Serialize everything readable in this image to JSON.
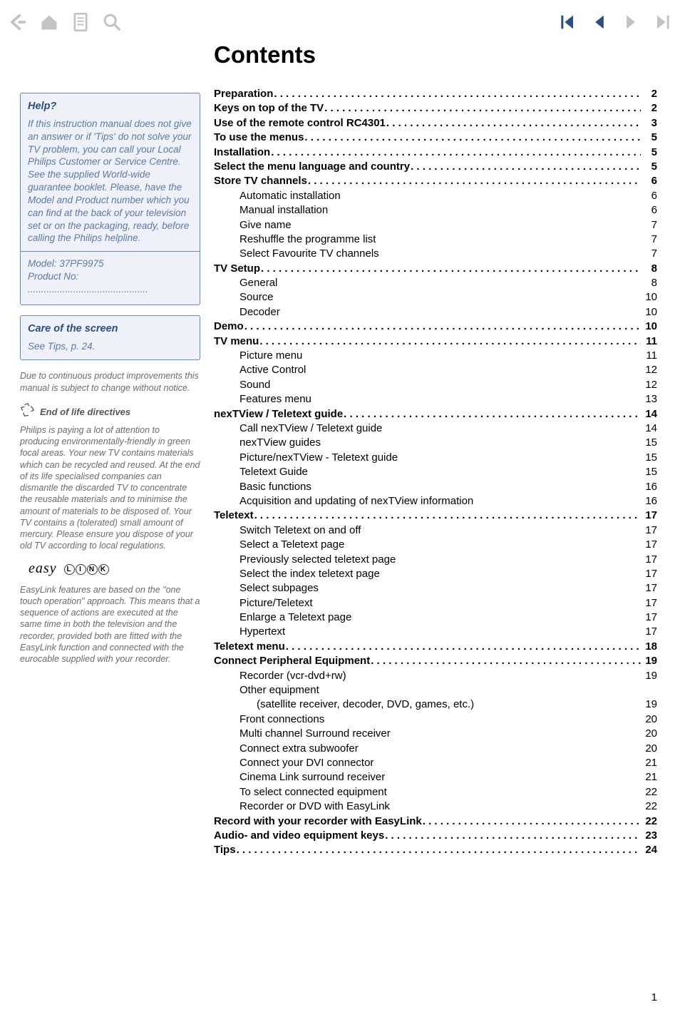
{
  "title": "Contents",
  "page_number": "1",
  "colors": {
    "box_border": "#6b8ab5",
    "box_bg": "#eef2f8",
    "side_title": "#2a4f85",
    "side_body": "#5b7aa6",
    "side_para": "#6b6b6b",
    "nav_inactive": "#c3c3c3",
    "nav_active_blue": "#2a4f85"
  },
  "nav": {
    "back": "back-icon",
    "home": "home-icon",
    "doc": "document-icon",
    "search": "search-icon",
    "first": "first-page-icon",
    "prev": "prev-page-icon",
    "next": "next-page-icon",
    "last": "last-page-icon"
  },
  "help": {
    "title": "Help?",
    "body": "If this instruction manual does not give an answer or if 'Tips' do not solve your TV problem, you can call your Local Philips Customer or Service Centre. See the supplied World-wide guarantee booklet.\nPlease, have the Model and Product number which you can find at the back of your television set or on the packaging, ready, before calling the Philips helpline.",
    "model_label": "Model: 37PF9975",
    "product_label": "Product No:  ............................................."
  },
  "care": {
    "title": "Care of the screen",
    "body": "See Tips, p. 24."
  },
  "notice": "Due to continuous product improvements this manual is subject to change without notice.",
  "eol": {
    "title": "End of life directives",
    "body": "Philips is paying a lot of attention to producing environmentally-friendly in green focal areas. Your new TV contains materials which can be recycled and reused. At the end of its life specialised companies can dismantle the discarded TV to concentrate the reusable materials and to minimise the amount of materials to be disposed of.\nYour TV contains a (tolerated) small amount of mercury. Please ensure you dispose of your old TV according to local regulations."
  },
  "easylink": {
    "logo_script": "easy",
    "letters": [
      "L",
      "I",
      "N",
      "K"
    ],
    "body": "EasyLink features are based on the \"one touch operation\" approach. This means that a sequence of actions are executed at the same time in both the television and the recorder, provided both are fitted with the EasyLink function and connected with the eurocable supplied with your recorder."
  },
  "toc": [
    {
      "label": "Preparation",
      "page": "2",
      "bold": true,
      "dots": true,
      "indent": 0
    },
    {
      "label": "Keys on top of the TV",
      "page": "2",
      "bold": true,
      "dots": true,
      "indent": 0
    },
    {
      "label": "Use of the remote control RC4301",
      "page": "3",
      "bold": true,
      "dots": true,
      "indent": 0
    },
    {
      "label": "To use the menus",
      "page": "5",
      "bold": true,
      "dots": true,
      "indent": 0
    },
    {
      "label": "Installation",
      "page": "5",
      "bold": true,
      "dots": true,
      "indent": 0
    },
    {
      "label": "Select the menu language and country",
      "page": "5",
      "bold": true,
      "dots": true,
      "indent": 0
    },
    {
      "label": "Store TV channels",
      "page": "6",
      "bold": true,
      "dots": true,
      "indent": 0
    },
    {
      "label": "Automatic installation",
      "page": "6",
      "bold": false,
      "dots": false,
      "indent": 1
    },
    {
      "label": "Manual installation",
      "page": "6",
      "bold": false,
      "dots": false,
      "indent": 1
    },
    {
      "label": "Give name",
      "page": "7",
      "bold": false,
      "dots": false,
      "indent": 1
    },
    {
      "label": "Reshuffle the programme list",
      "page": "7",
      "bold": false,
      "dots": false,
      "indent": 1
    },
    {
      "label": "Select Favourite TV channels",
      "page": "7",
      "bold": false,
      "dots": false,
      "indent": 1
    },
    {
      "label": "TV Setup",
      "page": "8",
      "bold": true,
      "dots": true,
      "indent": 0
    },
    {
      "label": "General",
      "page": "8",
      "bold": false,
      "dots": false,
      "indent": 1
    },
    {
      "label": "Source",
      "page": "10",
      "bold": false,
      "dots": false,
      "indent": 1
    },
    {
      "label": "Decoder",
      "page": "10",
      "bold": false,
      "dots": false,
      "indent": 1
    },
    {
      "label": "Demo",
      "page": "10",
      "bold": true,
      "dots": true,
      "indent": 0
    },
    {
      "label": "TV menu",
      "page": "11",
      "bold": true,
      "dots": true,
      "indent": 0
    },
    {
      "label": "Picture menu",
      "page": "11",
      "bold": false,
      "dots": false,
      "indent": 1
    },
    {
      "label": "Active Control",
      "page": "12",
      "bold": false,
      "dots": false,
      "indent": 1
    },
    {
      "label": "Sound",
      "page": "12",
      "bold": false,
      "dots": false,
      "indent": 1
    },
    {
      "label": "Features menu",
      "page": "13",
      "bold": false,
      "dots": false,
      "indent": 1
    },
    {
      "label": "nexTView / Teletext guide",
      "page": "14",
      "bold": true,
      "dots": true,
      "indent": 0
    },
    {
      "label": "Call nexTView / Teletext guide",
      "page": "14",
      "bold": false,
      "dots": false,
      "indent": 1
    },
    {
      "label": "nexTView guides",
      "page": "15",
      "bold": false,
      "dots": false,
      "indent": 1
    },
    {
      "label": "Picture/nexTView - Teletext guide",
      "page": "15",
      "bold": false,
      "dots": false,
      "indent": 1
    },
    {
      "label": "Teletext Guide",
      "page": "15",
      "bold": false,
      "dots": false,
      "indent": 1
    },
    {
      "label": "Basic functions",
      "page": "16",
      "bold": false,
      "dots": false,
      "indent": 1
    },
    {
      "label": "Acquisition and updating of nexTView information",
      "page": "16",
      "bold": false,
      "dots": false,
      "indent": 1
    },
    {
      "label": "Teletext",
      "page": "17",
      "bold": true,
      "dots": true,
      "indent": 0
    },
    {
      "label": "Switch Teletext on and off",
      "page": "17",
      "bold": false,
      "dots": false,
      "indent": 1
    },
    {
      "label": "Select a Teletext page",
      "page": "17",
      "bold": false,
      "dots": false,
      "indent": 1
    },
    {
      "label": "Previously selected teletext page",
      "page": "17",
      "bold": false,
      "dots": false,
      "indent": 1
    },
    {
      "label": "Select the index teletext page",
      "page": "17",
      "bold": false,
      "dots": false,
      "indent": 1
    },
    {
      "label": "Select subpages",
      "page": "17",
      "bold": false,
      "dots": false,
      "indent": 1
    },
    {
      "label": "Picture/Teletext",
      "page": "17",
      "bold": false,
      "dots": false,
      "indent": 1
    },
    {
      "label": "Enlarge a Teletext page",
      "page": "17",
      "bold": false,
      "dots": false,
      "indent": 1
    },
    {
      "label": "Hypertext",
      "page": "17",
      "bold": false,
      "dots": false,
      "indent": 1
    },
    {
      "label": "Teletext menu",
      "page": "18",
      "bold": true,
      "dots": true,
      "indent": 0
    },
    {
      "label": "Connect Peripheral Equipment",
      "page": "19",
      "bold": true,
      "dots": true,
      "indent": 0
    },
    {
      "label": "Recorder (vcr-dvd+rw)",
      "page": "19",
      "bold": false,
      "dots": false,
      "indent": 1
    },
    {
      "label": "Other equipment",
      "page": "",
      "bold": false,
      "dots": false,
      "indent": 1
    },
    {
      "label": "(satellite receiver, decoder, DVD, games, etc.)",
      "page": "19",
      "bold": false,
      "dots": false,
      "indent": 2
    },
    {
      "label": "Front connections",
      "page": "20",
      "bold": false,
      "dots": false,
      "indent": 1
    },
    {
      "label": "Multi channel Surround receiver",
      "page": "20",
      "bold": false,
      "dots": false,
      "indent": 1
    },
    {
      "label": "Connect extra subwoofer",
      "page": "20",
      "bold": false,
      "dots": false,
      "indent": 1
    },
    {
      "label": "Connect your DVI connector",
      "page": "21",
      "bold": false,
      "dots": false,
      "indent": 1
    },
    {
      "label": "Cinema Link surround receiver",
      "page": "21",
      "bold": false,
      "dots": false,
      "indent": 1
    },
    {
      "label": "To select connected equipment",
      "page": "22",
      "bold": false,
      "dots": false,
      "indent": 1
    },
    {
      "label": "Recorder or DVD with EasyLink",
      "page": "22",
      "bold": false,
      "dots": false,
      "indent": 1
    },
    {
      "label": "Record with your recorder with EasyLink",
      "page": "22",
      "bold": true,
      "dots": true,
      "indent": 0
    },
    {
      "label": "Audio- and video equipment keys",
      "page": "23",
      "bold": true,
      "dots": true,
      "indent": 0
    },
    {
      "label": "Tips",
      "page": "24",
      "bold": true,
      "dots": true,
      "indent": 0
    }
  ]
}
